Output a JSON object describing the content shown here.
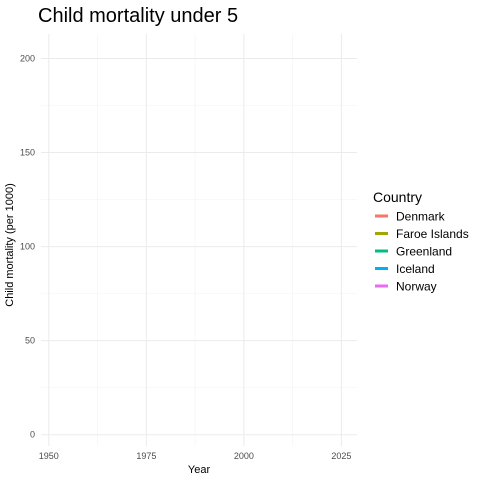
{
  "chart_data": {
    "type": "line",
    "title": "Child mortality under 5",
    "xlabel": "Year",
    "ylabel": "Child mortality (per 1000)",
    "xlim": [
      1948,
      2029
    ],
    "ylim": [
      -6,
      213
    ],
    "x_ticks": [
      1950,
      1975,
      2000,
      2025
    ],
    "y_ticks": [
      0,
      50,
      100,
      150,
      200
    ],
    "grid": true,
    "legend": {
      "title": "Country",
      "placement": "right"
    },
    "series": [
      {
        "name": "Denmark",
        "color": "#F8766D",
        "x": [],
        "y": []
      },
      {
        "name": "Faroe Islands",
        "color": "#A3A500",
        "x": [],
        "y": []
      },
      {
        "name": "Greenland",
        "color": "#00BF7D",
        "x": [],
        "y": []
      },
      {
        "name": "Iceland",
        "color": "#00B0F6",
        "x": [],
        "y": []
      },
      {
        "name": "Norway",
        "color": "#E76BF3",
        "x": [],
        "y": []
      }
    ]
  }
}
